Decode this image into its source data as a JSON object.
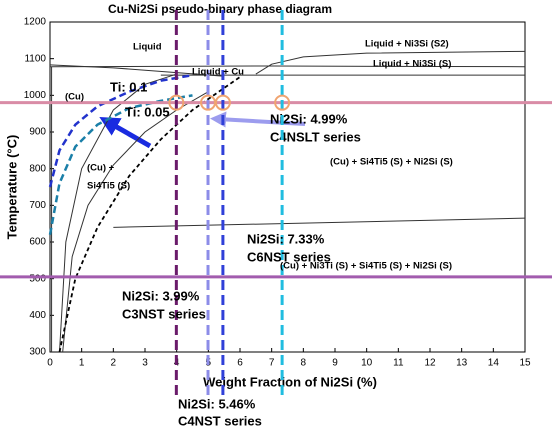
{
  "chart_data": {
    "type": "line",
    "title": "Cu-Ni2Si pseudo-binary phase diagram",
    "xlabel": "Weight Fraction of Ni2Si (%)",
    "ylabel": "Temperature (°C)",
    "xlim": [
      0,
      15
    ],
    "ylim": [
      300,
      1200
    ],
    "xticks": [
      0,
      1,
      2,
      3,
      4,
      5,
      6,
      7,
      8,
      9,
      10,
      11,
      12,
      13,
      14,
      15
    ],
    "yticks": [
      300,
      400,
      500,
      600,
      700,
      800,
      900,
      1000,
      1100,
      1200
    ],
    "series": [
      {
        "color": "#333333",
        "dash": false,
        "x": [
          0,
          2,
          4,
          5.5
        ],
        "y": [
          1083,
          1075,
          1062,
          1052
        ]
      },
      {
        "color": "#333333",
        "dash": false,
        "x": [
          3.5,
          15
        ],
        "y": [
          1055,
          1055
        ]
      },
      {
        "color": "#333333",
        "dash": false,
        "x": [
          0,
          7,
          15
        ],
        "y": [
          1078,
          1080,
          1078
        ]
      },
      {
        "color": "#333333",
        "dash": false,
        "x": [
          6.5,
          7,
          8,
          10,
          15
        ],
        "y": [
          1058,
          1085,
          1105,
          1115,
          1120
        ]
      },
      {
        "color": "#333333",
        "dash": false,
        "x": [
          0.3,
          0.5,
          1,
          2,
          3,
          4
        ],
        "y": [
          300,
          600,
          800,
          960,
          1030,
          1058
        ]
      },
      {
        "color": "#333333",
        "dash": false,
        "x": [
          0.4,
          0.7,
          1.2,
          2,
          3,
          4,
          5
        ],
        "y": [
          300,
          560,
          700,
          810,
          900,
          960,
          1010
        ]
      },
      {
        "color": "#333333",
        "dash": false,
        "x": [
          2,
          15
        ],
        "y": [
          640,
          665
        ]
      },
      {
        "color": "#333333",
        "dash": false,
        "x": [
          0.05,
          0.05
        ],
        "y": [
          300,
          1078
        ]
      },
      {
        "color": "#000000",
        "dash": true,
        "x": [
          0.3,
          0.8,
          1.5,
          2.5,
          3.5,
          4.5,
          5.5,
          6
        ],
        "y": [
          300,
          500,
          640,
          780,
          880,
          960,
          1020,
          1050
        ]
      },
      {
        "name": "Ti: 0.1",
        "color": "#2233cc",
        "dash": true,
        "x": [
          0,
          0.3,
          0.8,
          1.5,
          2.5,
          3.5,
          4.5
        ],
        "y": [
          750,
          850,
          920,
          970,
          1010,
          1040,
          1055
        ]
      },
      {
        "name": "Ti: 0.05",
        "color": "#1a7fa8",
        "dash": true,
        "x": [
          0,
          0.3,
          0.8,
          1.5,
          2.5,
          3.5,
          4.5
        ],
        "y": [
          620,
          760,
          860,
          920,
          965,
          985,
          1000
        ]
      }
    ],
    "hlines": [
      {
        "y": 980,
        "color": "#d98ca6"
      },
      {
        "y": 505,
        "color": "#a25cae"
      }
    ],
    "vlines": [
      {
        "x": 3.99,
        "label": "Ni2Si: 3.99%",
        "sublabel": "C3NST series",
        "color": "#6a1b6a"
      },
      {
        "x": 4.99,
        "label": "Ni2Si: 4.99%",
        "sublabel": "C4NSLT series",
        "color": "#8c8ce8"
      },
      {
        "x": 5.46,
        "label": "Ni2Si: 5.46%",
        "sublabel": "C4NST series",
        "color": "#3040d8"
      },
      {
        "x": 7.33,
        "label": "Ni2Si: 7.33%",
        "sublabel": "C6NST series",
        "color": "#20bde0"
      }
    ],
    "marker_color": "#f0a470",
    "regions": [
      "Liquid",
      "Liquid + Ni3Si (S2)",
      "Liquid + Ni3Si (S)",
      "Liquid + Cu",
      "(Cu)",
      "(Cu) +",
      "Si4Ti5 (S)",
      "(Cu) + Si4Ti5 (S) + Ni2Si (S)",
      "(Cu) + Ni3Ti (S) + Si4Ti5 (S) + Ni2Si (S)"
    ]
  }
}
